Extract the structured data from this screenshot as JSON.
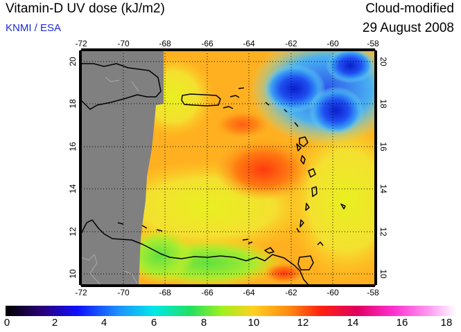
{
  "header": {
    "title": "Vitamin-D UV dose (kJ/m2)",
    "credit": "KNMI / ESA",
    "mode": "Cloud-modified",
    "date": "29 August 2008"
  },
  "map": {
    "lon_range": [
      -72,
      -58
    ],
    "lat_range": [
      9.5,
      20.5
    ],
    "lon_ticks": [
      "-72",
      "-70",
      "-68",
      "-66",
      "-64",
      "-62",
      "-60",
      "-58"
    ],
    "lat_ticks": [
      "10",
      "12",
      "14",
      "16",
      "18",
      "20"
    ],
    "no_data_color": "#808080",
    "grid": "dotted"
  },
  "colorbar": {
    "min": 0,
    "max": 18,
    "labels": [
      "0",
      "2",
      "4",
      "6",
      "8",
      "10",
      "12",
      "14",
      "16",
      "18"
    ]
  }
}
